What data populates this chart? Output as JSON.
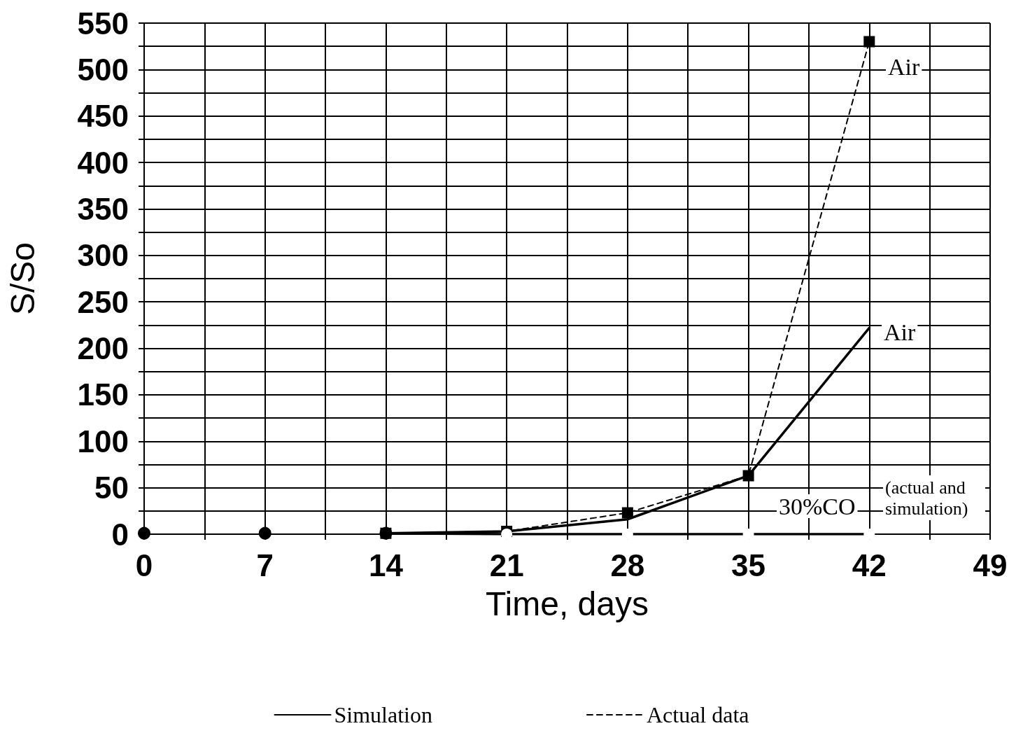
{
  "chart_data": {
    "type": "line",
    "xlabel": "Time, days",
    "ylabel": "S/So",
    "xlim": [
      0,
      49
    ],
    "xticks": [
      0,
      {
        "value": 3.5,
        "label": null
      },
      7,
      {
        "value": 10.5,
        "label": null
      },
      14,
      {
        "value": 17.5,
        "label": null
      },
      21,
      {
        "value": 24.5,
        "label": null
      },
      28,
      {
        "value": 31.5,
        "label": null
      },
      35,
      {
        "value": 38.5,
        "label": null
      },
      42,
      {
        "value": 45.5,
        "label": null
      },
      49
    ],
    "ylim": [
      0,
      550
    ],
    "yticks": [
      0,
      {
        "value": 25,
        "label": null
      },
      50,
      {
        "value": 75,
        "label": null
      },
      100,
      {
        "value": 125,
        "label": null
      },
      150,
      {
        "value": 175,
        "label": null
      },
      200,
      {
        "value": 225,
        "label": null
      },
      250,
      {
        "value": 275,
        "label": null
      },
      300,
      {
        "value": 325,
        "label": null
      },
      350,
      {
        "value": 375,
        "label": null
      },
      400,
      {
        "value": 425,
        "label": null
      },
      450,
      {
        "value": 475,
        "label": null
      },
      500,
      {
        "value": 525,
        "label": null
      },
      550
    ],
    "grid": true,
    "legend": "bottom",
    "series": [
      {
        "type": "scatter",
        "color": "#000000",
        "marker": "circle",
        "x": [
          0,
          7,
          14
        ],
        "values": [
          1,
          1,
          1
        ]
      },
      {
        "name": "Actual data",
        "color": "#000000",
        "line_style": "dashed",
        "marker": "square",
        "x": [
          14,
          21,
          28,
          35,
          42
        ],
        "values": [
          1,
          3,
          23,
          63,
          530
        ]
      },
      {
        "name": "Simulation",
        "color": "#000000",
        "line_style": "solid",
        "marker": "none",
        "x": [
          14,
          21,
          28,
          35,
          42
        ],
        "values": [
          1,
          3,
          16,
          63,
          222
        ]
      },
      {
        "color": "#000000",
        "line_style": "solid",
        "marker": "circle",
        "x": [
          14,
          21,
          28,
          35,
          42
        ],
        "values": [
          1,
          0,
          0,
          0,
          0
        ]
      }
    ],
    "annotations": [
      "Air",
      "Air",
      "30%CO",
      "(actual and simulation)"
    ]
  }
}
